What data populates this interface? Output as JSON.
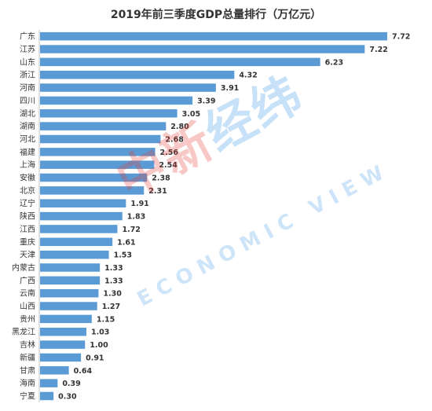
{
  "chart_data": {
    "type": "bar",
    "orientation": "horizontal",
    "title": "2019年前三季度GDP总量排行（万亿元）",
    "categories": [
      "广东",
      "江苏",
      "山东",
      "浙江",
      "河南",
      "四川",
      "湖北",
      "湖南",
      "河北",
      "福建",
      "上海",
      "安徽",
      "北京",
      "辽宁",
      "陕西",
      "江西",
      "重庆",
      "天津",
      "内蒙古",
      "广西",
      "云南",
      "山西",
      "贵州",
      "黑龙江",
      "吉林",
      "新疆",
      "甘肃",
      "海南",
      "宁夏"
    ],
    "values": [
      7.72,
      7.22,
      6.23,
      4.32,
      3.91,
      3.39,
      3.05,
      2.8,
      2.68,
      2.56,
      2.54,
      2.38,
      2.31,
      1.91,
      1.83,
      1.72,
      1.61,
      1.53,
      1.33,
      1.33,
      1.3,
      1.27,
      1.15,
      1.03,
      1.0,
      0.91,
      0.64,
      0.39,
      0.3
    ],
    "value_labels": [
      "7.72",
      "7.22",
      "6.23",
      "4.32",
      "3.91",
      "3.39",
      "3.05",
      "2.80",
      "2.68",
      "2.56",
      "2.54",
      "2.38",
      "2.31",
      "1.91",
      "1.83",
      "1.72",
      "1.61",
      "1.53",
      "1.33",
      "1.33",
      "1.30",
      "1.27",
      "1.15",
      "1.03",
      "1.00",
      "0.91",
      "0.64",
      "0.39",
      "0.30"
    ],
    "xlim": [
      0,
      8
    ],
    "grid": false,
    "bar_color": "#5b9bd5"
  },
  "watermark": {
    "cn_part1": "中新",
    "cn_part2": "经纬",
    "en": "ECONOMIC VIEW",
    "color_red": "#e53935",
    "color_blue": "#1e88e5"
  }
}
